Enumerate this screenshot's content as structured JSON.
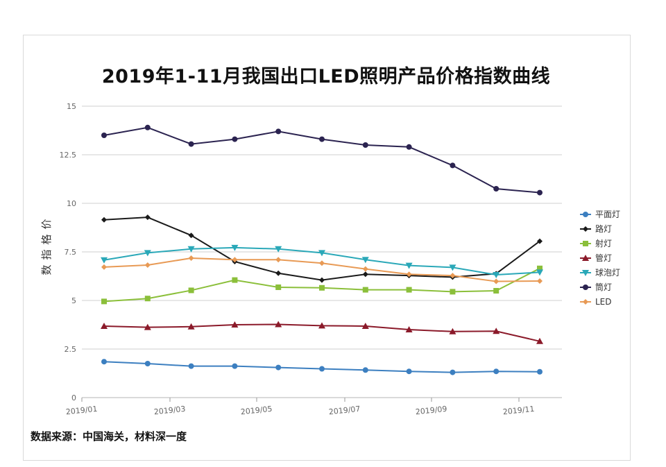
{
  "chart_data": {
    "type": "line",
    "title": "2019年1-11月我国出口LED照明产品价格指数曲线",
    "ylabel": "价格指数",
    "xlabel": "",
    "ylim": [
      0,
      15
    ],
    "yticks": [
      "0",
      "2.5",
      "5",
      "7.5",
      "10",
      "12.5",
      "15"
    ],
    "xticks": [
      "2019/01",
      "2019/03",
      "2019/05",
      "2019/07",
      "2019/09",
      "2019/11"
    ],
    "x": [
      "2019/01",
      "2019/02",
      "2019/03",
      "2019/04",
      "2019/05",
      "2019/06",
      "2019/07",
      "2019/08",
      "2019/09",
      "2019/10",
      "2019/11"
    ],
    "grid": true,
    "legend_position": "right",
    "series": [
      {
        "name": "平面灯",
        "color": "#3c7fc0",
        "marker": "circle",
        "values": [
          1.85,
          1.75,
          1.62,
          1.62,
          1.55,
          1.48,
          1.42,
          1.35,
          1.3,
          1.35,
          1.33
        ]
      },
      {
        "name": "路灯",
        "color": "#1a1a1a",
        "marker": "diamond",
        "values": [
          9.15,
          9.28,
          8.35,
          7.0,
          6.4,
          6.05,
          6.35,
          6.28,
          6.2,
          6.38,
          8.05
        ]
      },
      {
        "name": "射灯",
        "color": "#8bbf3a",
        "marker": "square",
        "values": [
          4.95,
          5.1,
          5.52,
          6.05,
          5.68,
          5.65,
          5.55,
          5.55,
          5.45,
          5.5,
          6.65
        ]
      },
      {
        "name": "管灯",
        "color": "#8b1a2a",
        "marker": "triangle",
        "values": [
          3.68,
          3.62,
          3.65,
          3.75,
          3.77,
          3.7,
          3.68,
          3.5,
          3.4,
          3.42,
          2.9
        ]
      },
      {
        "name": "球泡灯",
        "color": "#2aa8b8",
        "marker": "tridown",
        "values": [
          7.08,
          7.45,
          7.65,
          7.72,
          7.65,
          7.45,
          7.1,
          6.8,
          6.7,
          6.32,
          6.45
        ]
      },
      {
        "name": "筒灯",
        "color": "#2b2350",
        "marker": "circle",
        "values": [
          13.5,
          13.9,
          13.05,
          13.3,
          13.7,
          13.3,
          13.0,
          12.9,
          11.95,
          10.75,
          10.55
        ]
      },
      {
        "name": "LED",
        "color": "#e89a55",
        "marker": "diamond",
        "values": [
          6.72,
          6.82,
          7.18,
          7.1,
          7.1,
          6.92,
          6.62,
          6.35,
          6.28,
          5.98,
          6.0
        ]
      }
    ]
  },
  "footer": {
    "source": "数据来源：中国海关，材料深一度"
  }
}
